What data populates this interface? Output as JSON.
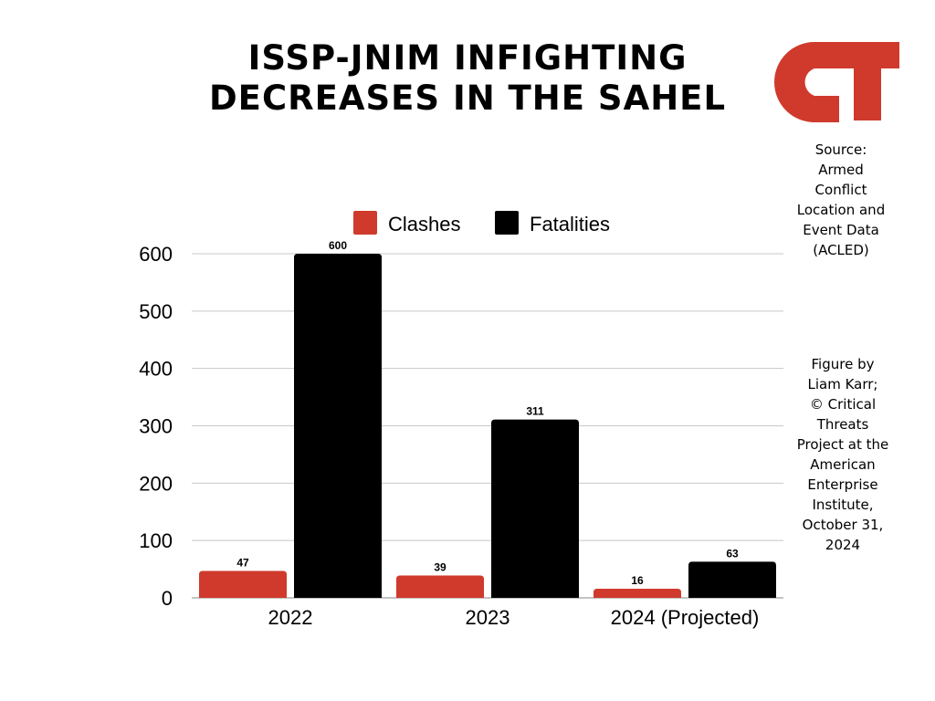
{
  "header": {
    "title_line1": "ISSP-JNIM INFIGHTING",
    "title_line2": "DECREASES IN THE SAHEL",
    "logo_text": "CT"
  },
  "notes": {
    "source": "Source:\nArmed\nConflict\nLocation and\nEvent Data\n(ACLED)",
    "credit": "Figure by\nLiam Karr;\n© Critical\nThreats\nProject at the\nAmerican\nEnterprise\nInstitute,\nOctober 31,\n2024"
  },
  "colors": {
    "clashes": "#cf3a2c",
    "fatalities": "#000000",
    "grid": "#c8c8c8",
    "logo": "#cf3a2c"
  },
  "chart_data": {
    "type": "bar",
    "title": "ISSP-JNIM INFIGHTING DECREASES IN THE SAHEL",
    "categories": [
      "2022",
      "2023",
      "2024 (Projected)"
    ],
    "series": [
      {
        "name": "Clashes",
        "values": [
          47,
          39,
          16
        ]
      },
      {
        "name": "Fatalities",
        "values": [
          600,
          311,
          63
        ]
      }
    ],
    "ylim": [
      0,
      600
    ],
    "yticks": [
      0,
      100,
      200,
      300,
      400,
      500,
      600
    ],
    "grid": true,
    "legend": "top",
    "data_labels": true
  }
}
